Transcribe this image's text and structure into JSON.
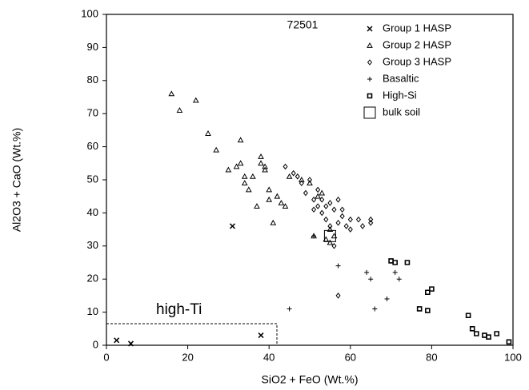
{
  "chart_data": {
    "type": "scatter",
    "xlabel": "SiO2 + FeO (Wt.%)",
    "ylabel": "Al2O3 + CaO (Wt.%)",
    "annotations": [
      "72501",
      "high-Ti"
    ],
    "xlim": [
      0,
      100
    ],
    "ylim": [
      0,
      100
    ],
    "xticks": [
      0,
      20,
      40,
      60,
      80,
      100
    ],
    "yticks": [
      0,
      10,
      20,
      30,
      40,
      50,
      60,
      70,
      80,
      90,
      100
    ],
    "grid": false,
    "legend": "upper right",
    "series": [
      {
        "name": "Group 1 HASP",
        "marker": "x",
        "color": "#000000",
        "x": [
          2.5,
          6,
          31,
          38
        ],
        "y": [
          1.5,
          0.5,
          36,
          3
        ]
      },
      {
        "name": "Group 2 HASP",
        "marker": "triangle",
        "color": "#000000",
        "x": [
          16,
          18,
          22,
          25,
          27,
          30,
          32,
          33,
          33,
          34,
          34,
          35,
          36,
          37,
          38,
          38,
          39,
          39,
          40,
          40,
          41,
          42,
          43,
          44,
          45,
          48,
          50,
          51,
          52,
          53,
          54,
          55,
          56,
          55
        ],
        "y": [
          76,
          71,
          74,
          64,
          59,
          53,
          54,
          55,
          62,
          51,
          49,
          47,
          51,
          42,
          55,
          57,
          53,
          54,
          47,
          44,
          37,
          45,
          43,
          42,
          51,
          50,
          49,
          33,
          45,
          46,
          32,
          31,
          33,
          35
        ]
      },
      {
        "name": "Group 3 HASP",
        "marker": "diamond",
        "color": "#000000",
        "x": [
          44,
          46,
          47,
          48,
          49,
          50,
          51,
          51,
          52,
          52,
          53,
          53,
          54,
          54,
          55,
          55,
          56,
          56,
          57,
          57,
          58,
          58,
          59,
          60,
          60,
          62,
          63,
          65,
          65,
          57
        ],
        "y": [
          54,
          52,
          51,
          49,
          46,
          50,
          44,
          41,
          47,
          42,
          44,
          40,
          42,
          38,
          43,
          36,
          41,
          30,
          37,
          44,
          41,
          39,
          36,
          38,
          35,
          38,
          36,
          37,
          38,
          15
        ]
      },
      {
        "name": "Basaltic",
        "marker": "plus",
        "color": "#000000",
        "x": [
          45,
          51,
          57,
          64,
          65,
          66,
          69,
          71,
          72
        ],
        "y": [
          11,
          33,
          24,
          22,
          20,
          11,
          14,
          22,
          20
        ]
      },
      {
        "name": "High-Si",
        "marker": "square",
        "color": "#000000",
        "x": [
          70,
          71,
          74,
          77,
          79,
          80,
          79,
          89,
          90,
          91,
          93,
          94,
          96,
          99
        ],
        "y": [
          25.5,
          25,
          25,
          11,
          10.5,
          17,
          16,
          9,
          5,
          3.5,
          3,
          2.5,
          3.5,
          1
        ]
      },
      {
        "name": "bulk soil",
        "marker": "square-large",
        "color": "#000000",
        "x": [
          55
        ],
        "y": [
          33
        ]
      }
    ]
  }
}
